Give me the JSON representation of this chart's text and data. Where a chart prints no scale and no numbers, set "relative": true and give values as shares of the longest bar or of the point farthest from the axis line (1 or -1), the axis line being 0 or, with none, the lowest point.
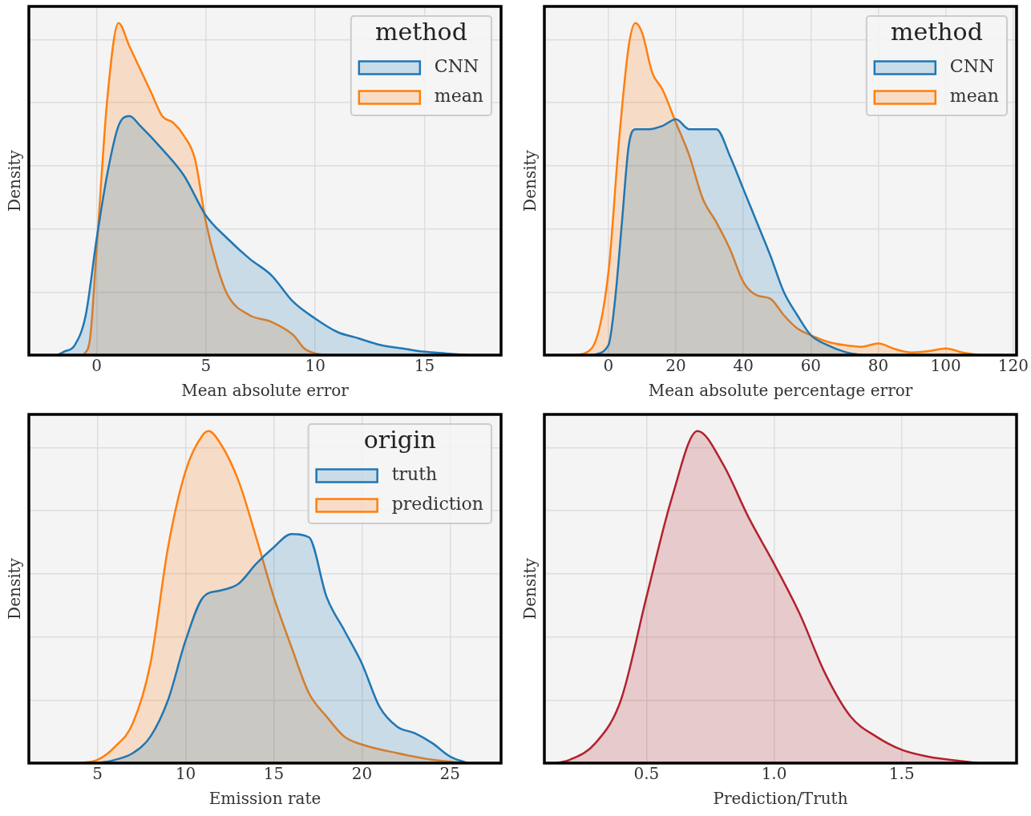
{
  "chart_data": [
    {
      "type": "area",
      "relative": true,
      "xlabel": "Mean absolute error",
      "ylabel": "Density",
      "legend_title": "method",
      "legend": "top right",
      "grid": true,
      "xlim": [
        -3.1,
        18.5
      ],
      "xticks": [
        0,
        5,
        10,
        15
      ],
      "series": [
        {
          "name": "CNN",
          "color": "#1f77b4",
          "x": [
            -1.8,
            -1.5,
            -1,
            -0.5,
            0,
            0.5,
            1,
            1.5,
            2,
            3,
            4,
            5,
            6,
            7,
            8,
            9,
            10,
            11,
            12,
            13,
            14,
            15,
            16,
            17
          ],
          "values": [
            0,
            0.01,
            0.03,
            0.12,
            0.35,
            0.55,
            0.69,
            0.72,
            0.69,
            0.62,
            0.54,
            0.42,
            0.35,
            0.29,
            0.24,
            0.16,
            0.11,
            0.07,
            0.05,
            0.03,
            0.02,
            0.01,
            0.005,
            0
          ]
        },
        {
          "name": "mean",
          "color": "#ff7f0e",
          "x": [
            -0.6,
            -0.3,
            0,
            0.5,
            1,
            1.5,
            2,
            2.5,
            3,
            3.5,
            4,
            4.5,
            5,
            5.5,
            6,
            7,
            8,
            9,
            9.5,
            10,
            10.5
          ],
          "values": [
            0,
            0.05,
            0.32,
            0.78,
            1,
            0.93,
            0.86,
            0.79,
            0.72,
            0.7,
            0.66,
            0.59,
            0.4,
            0.27,
            0.18,
            0.12,
            0.1,
            0.06,
            0.02,
            0.005,
            0
          ]
        }
      ]
    },
    {
      "type": "area",
      "relative": true,
      "xlabel": "Mean absolute percentage error",
      "ylabel": "Density",
      "legend_title": "method",
      "legend": "top right",
      "grid": true,
      "xlim": [
        -19,
        121
      ],
      "xticks": [
        0,
        20,
        40,
        60,
        80,
        100,
        120
      ],
      "series": [
        {
          "name": "CNN",
          "color": "#1f77b4",
          "x": [
            -5,
            0,
            2,
            4,
            6,
            8,
            12,
            16,
            20,
            24,
            28,
            32,
            36,
            40,
            44,
            48,
            52,
            56,
            60,
            65,
            70,
            75
          ],
          "values": [
            0,
            0.03,
            0.17,
            0.4,
            0.63,
            0.68,
            0.68,
            0.69,
            0.71,
            0.68,
            0.68,
            0.68,
            0.6,
            0.5,
            0.4,
            0.3,
            0.19,
            0.12,
            0.06,
            0.03,
            0.01,
            0
          ]
        },
        {
          "name": "mean",
          "color": "#ff7f0e",
          "x": [
            -10,
            -5,
            0,
            3,
            6,
            8,
            10,
            13,
            16,
            20,
            24,
            28,
            32,
            36,
            40,
            44,
            48,
            52,
            56,
            60,
            65,
            70,
            75,
            80,
            85,
            90,
            95,
            100,
            105,
            110
          ],
          "values": [
            0,
            0.02,
            0.25,
            0.63,
            0.93,
            1,
            0.97,
            0.85,
            0.8,
            0.7,
            0.6,
            0.47,
            0.4,
            0.32,
            0.22,
            0.18,
            0.17,
            0.12,
            0.08,
            0.06,
            0.04,
            0.03,
            0.025,
            0.035,
            0.018,
            0.008,
            0.012,
            0.02,
            0.008,
            0
          ]
        }
      ]
    },
    {
      "type": "area",
      "relative": true,
      "xlabel": "Emission rate",
      "ylabel": "Density",
      "legend_title": "origin",
      "legend": "top right",
      "grid": true,
      "xlim": [
        1.1,
        27.9
      ],
      "xticks": [
        5,
        10,
        15,
        20,
        25
      ],
      "series": [
        {
          "name": "truth",
          "color": "#1f77b4",
          "x": [
            5,
            6,
            7,
            8,
            9,
            10,
            11,
            12,
            13,
            14,
            15,
            16,
            17,
            18,
            19,
            20,
            21,
            22,
            23,
            24,
            25,
            26
          ],
          "values": [
            0,
            0.01,
            0.03,
            0.08,
            0.19,
            0.37,
            0.5,
            0.52,
            0.54,
            0.6,
            0.65,
            0.69,
            0.68,
            0.5,
            0.4,
            0.3,
            0.17,
            0.11,
            0.09,
            0.06,
            0.02,
            0
          ]
        },
        {
          "name": "prediction",
          "color": "#ff7f0e",
          "x": [
            4,
            5,
            6,
            7,
            8,
            9,
            10,
            11,
            11.3,
            12,
            13,
            14,
            15,
            16,
            17,
            18,
            19,
            20,
            22,
            24,
            26
          ],
          "values": [
            0,
            0.01,
            0.05,
            0.12,
            0.3,
            0.65,
            0.88,
            0.99,
            1,
            0.96,
            0.85,
            0.68,
            0.5,
            0.35,
            0.21,
            0.14,
            0.08,
            0.056,
            0.03,
            0.01,
            0
          ]
        }
      ]
    },
    {
      "type": "area",
      "relative": true,
      "xlabel": "Prediction/Truth",
      "ylabel": "Density",
      "legend": false,
      "grid": true,
      "xlim": [
        0.1,
        1.95
      ],
      "xticks": [
        {
          "value": 0.5,
          "label": "0.5"
        },
        {
          "value": 1,
          "label": "1.0"
        },
        {
          "value": 1.5,
          "label": "1.5"
        }
      ],
      "series": [
        {
          "color": "#b2222e",
          "x": [
            0.15,
            0.2,
            0.3,
            0.4,
            0.5,
            0.6,
            0.7,
            0.8,
            0.9,
            1,
            1.1,
            1.2,
            1.3,
            1.4,
            1.5,
            1.6,
            1.8
          ],
          "values": [
            0,
            0.01,
            0.06,
            0.19,
            0.5,
            0.8,
            1,
            0.9,
            0.74,
            0.6,
            0.45,
            0.27,
            0.14,
            0.08,
            0.04,
            0.02,
            0
          ]
        }
      ]
    }
  ]
}
